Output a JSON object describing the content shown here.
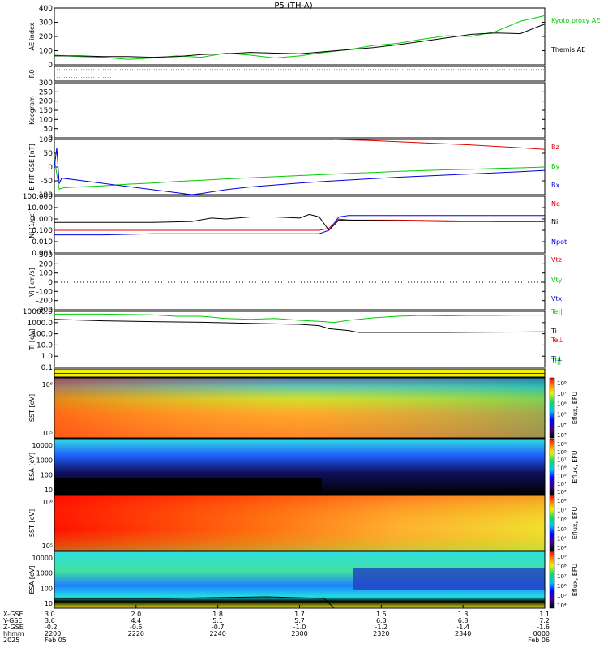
{
  "title": "P5 (TH-A)",
  "colors": {
    "black": "#000000",
    "red": "#e00000",
    "green": "#00cc00",
    "blue": "#0000dd",
    "orange": "#ff8800"
  },
  "chart_data": [
    {
      "type": "line",
      "ylabel": "AE index",
      "ylim": [
        -10,
        400
      ],
      "yticks": [
        "400",
        "300",
        "200",
        "100",
        "0"
      ],
      "series": [
        {
          "name": "Kyoto proxy AE",
          "color": "#00cc00",
          "x": [
            0,
            5,
            10,
            15,
            20,
            25,
            30,
            35,
            40,
            45,
            50,
            55,
            60,
            65,
            70,
            75,
            80,
            85,
            90,
            95,
            100
          ],
          "y": [
            60,
            50,
            45,
            30,
            40,
            55,
            45,
            75,
            60,
            40,
            55,
            80,
            100,
            130,
            145,
            175,
            200,
            195,
            230,
            305,
            345
          ]
        },
        {
          "name": "Themis AE",
          "color": "#000000",
          "x": [
            0,
            5,
            10,
            15,
            20,
            25,
            30,
            35,
            40,
            45,
            50,
            55,
            60,
            65,
            70,
            75,
            80,
            85,
            90,
            95,
            100
          ],
          "y": [
            55,
            55,
            50,
            50,
            45,
            50,
            65,
            70,
            80,
            75,
            70,
            85,
            100,
            115,
            135,
            160,
            185,
            210,
            220,
            215,
            285
          ]
        }
      ]
    },
    {
      "type": "line",
      "ylabel": "R0",
      "ylim": [
        0,
        1
      ],
      "yticks": [],
      "series": [
        {
          "name": "",
          "color": "#ff8800",
          "style": "dotted",
          "x": [
            0,
            100
          ],
          "y": [
            0.8,
            0.8
          ]
        },
        {
          "name": "",
          "color": "#ff8800",
          "style": "dotted",
          "x": [
            0,
            12
          ],
          "y": [
            0.25,
            0.25
          ]
        }
      ]
    },
    {
      "type": "line",
      "ylabel": "Keogram",
      "ylim": [
        0,
        300
      ],
      "yticks": [
        "300",
        "250",
        "200",
        "150",
        "100",
        "50",
        "0"
      ],
      "series": []
    },
    {
      "type": "line",
      "ylabel": "B FIT GSE [nT]",
      "ylim": [
        -100,
        100
      ],
      "yticks": [
        "100",
        "50",
        "0",
        "-50",
        "-100"
      ],
      "series": [
        {
          "name": "Bz",
          "color": "#e00000",
          "x": [
            57,
            65,
            70,
            75,
            80,
            85,
            90,
            95,
            100
          ],
          "y": [
            100,
            96,
            92,
            88,
            84,
            80,
            75,
            70,
            64
          ]
        },
        {
          "name": "By",
          "color": "#00cc00",
          "x": [
            0,
            1,
            2,
            5,
            10,
            15,
            20,
            25,
            30,
            35,
            40,
            45,
            50,
            55,
            60,
            65,
            70,
            75,
            80,
            85,
            90,
            95,
            100
          ],
          "y": [
            30,
            -80,
            -75,
            -72,
            -68,
            -62,
            -58,
            -52,
            -48,
            -43,
            -39,
            -35,
            -31,
            -27,
            -23,
            -20,
            -16,
            -13,
            -10,
            -8,
            -5,
            -3,
            0
          ]
        },
        {
          "name": "Bx",
          "color": "#0000dd",
          "x": [
            0,
            0.5,
            1,
            1.5,
            28,
            30,
            35,
            40,
            45,
            50,
            55,
            60,
            65,
            70,
            75,
            80,
            85,
            90,
            95,
            100
          ],
          "y": [
            0,
            70,
            -60,
            -40,
            -100,
            -96,
            -82,
            -72,
            -65,
            -58,
            -52,
            -47,
            -42,
            -37,
            -33,
            -29,
            -25,
            -21,
            -17,
            -12
          ]
        }
      ]
    },
    {
      "type": "line",
      "ylabel": "Ni [1/cc]",
      "ylog": true,
      "ylim": [
        0.001,
        100
      ],
      "yticks": [
        "100.000",
        "10.000",
        "1.000",
        "0.100",
        "0.010",
        "0.001"
      ],
      "series": [
        {
          "name": "Ne",
          "color": "#e00000",
          "x": [
            0,
            10,
            20,
            30,
            40,
            50,
            54,
            56,
            58,
            60,
            70,
            80,
            90,
            100
          ],
          "y": [
            0.1,
            0.1,
            0.1,
            0.1,
            0.1,
            0.1,
            0.1,
            0.15,
            1.0,
            0.8,
            0.8,
            0.7,
            0.6,
            0.6
          ]
        },
        {
          "name": "Ni",
          "color": "#000000",
          "x": [
            0,
            10,
            20,
            28,
            32,
            35,
            40,
            45,
            50,
            52,
            54,
            56,
            58,
            60,
            70,
            80,
            90,
            100
          ],
          "y": [
            0.5,
            0.5,
            0.5,
            0.6,
            1.2,
            1.0,
            1.5,
            1.5,
            1.2,
            2.5,
            1.5,
            0.1,
            0.8,
            0.8,
            0.7,
            0.6,
            0.6,
            0.6
          ]
        },
        {
          "name": "Npot",
          "color": "#0000dd",
          "x": [
            0,
            10,
            20,
            30,
            40,
            50,
            54,
            56,
            58,
            60,
            70,
            80,
            90,
            100
          ],
          "y": [
            0.04,
            0.04,
            0.05,
            0.05,
            0.05,
            0.05,
            0.05,
            0.1,
            1.5,
            2.0,
            2.0,
            2.0,
            2.0,
            2.0
          ]
        }
      ]
    },
    {
      "type": "line",
      "ylabel": "Vi [km/s]",
      "ylim": [
        -300,
        300
      ],
      "yticks": [
        "300",
        "200",
        "100",
        "0",
        "-100",
        "-200",
        "-300"
      ],
      "series": [
        {
          "name": "Vtz",
          "color": "#e00000",
          "x": [],
          "y": []
        },
        {
          "name": "Vty",
          "color": "#00cc00",
          "x": [],
          "y": []
        },
        {
          "name": "Vtx",
          "color": "#0000dd",
          "x": [],
          "y": []
        }
      ]
    },
    {
      "type": "line",
      "ylabel": "Ti [eV]",
      "ylog": true,
      "ylim": [
        0.05,
        15000
      ],
      "yticks": [
        "10000.0",
        "1000.0",
        "100.0",
        "10.0",
        "1.0",
        "0.1"
      ],
      "series": [
        {
          "name": "Te||",
          "color": "#00cc00",
          "x": [
            0,
            10,
            20,
            25,
            30,
            35,
            40,
            45,
            50,
            55,
            57,
            60,
            65,
            70,
            75,
            80,
            85,
            90,
            95,
            100
          ],
          "y": [
            8000,
            8000,
            7000,
            5000,
            5000,
            3000,
            2500,
            3000,
            2000,
            1500,
            1200,
            2000,
            3500,
            5000,
            6000,
            5500,
            6000,
            6000,
            6500,
            6500
          ]
        },
        {
          "name": "Ti",
          "color": "#000000",
          "x": [
            0,
            10,
            20,
            30,
            40,
            50,
            54,
            56,
            60,
            62,
            70,
            80,
            90,
            100
          ],
          "y": [
            2500,
            1800,
            1500,
            1300,
            1000,
            800,
            600,
            300,
            200,
            130,
            130,
            130,
            140,
            150
          ]
        },
        {
          "name": "Te⊥",
          "color": "#e00000",
          "x": [],
          "y": []
        },
        {
          "name": "Ti||",
          "color": "#00cc00",
          "x": [],
          "y": []
        },
        {
          "name": "Ti⊥",
          "color": "#0000dd",
          "x": [],
          "y": []
        }
      ]
    },
    {
      "type": "heatmap",
      "ylabel": "",
      "yticks": []
    },
    {
      "type": "heatmap",
      "ylabel": "SST [eV]",
      "yticks": [
        "10⁶",
        "10⁵"
      ],
      "colorbar": {
        "label": "Eflux, EFU",
        "ticks": [
          "10⁸",
          "10⁷",
          "10⁶",
          "10⁵",
          "10⁴",
          "10³"
        ]
      }
    },
    {
      "type": "heatmap",
      "ylabel": "ESA [eV]",
      "yticks": [
        "10000",
        "1000",
        "100",
        "10"
      ],
      "colorbar": {
        "label": "Eflux, EFU",
        "ticks": [
          "10⁹",
          "10⁸",
          "10⁷",
          "10⁶",
          "10⁵",
          "10⁴",
          "10³"
        ]
      }
    },
    {
      "type": "heatmap",
      "ylabel": "SST [eV]",
      "yticks": [
        "10⁶",
        "10⁵"
      ],
      "colorbar": {
        "label": "Eflux, EFU",
        "ticks": [
          "10⁸",
          "10⁷",
          "10⁶",
          "10⁵",
          "10⁴",
          "10³"
        ]
      }
    },
    {
      "type": "heatmap",
      "ylabel": "ESA [eV]",
      "yticks": [
        "10000",
        "1000",
        "100",
        "10"
      ],
      "colorbar": {
        "label": "Eflux, EFU",
        "ticks": [
          "10⁹",
          "10⁸",
          "10⁷",
          "10⁶",
          "10⁵",
          "10⁴"
        ]
      }
    }
  ],
  "xaxis": {
    "row_labels": [
      "X-GSE",
      "Y-GSE",
      "Z-GSE",
      "hhmm",
      "2025"
    ],
    "ticks": [
      {
        "vals": [
          "3.0",
          "3.6",
          "-0.2",
          "2200",
          "Feb 05"
        ]
      },
      {
        "vals": [
          "2.0",
          "4.4",
          "-0.5",
          "2220",
          ""
        ]
      },
      {
        "vals": [
          "1.8",
          "5.1",
          "-0.7",
          "2240",
          ""
        ]
      },
      {
        "vals": [
          "1.7",
          "5.7",
          "-1.0",
          "2300",
          ""
        ]
      },
      {
        "vals": [
          "1.5",
          "6.3",
          "-1.2",
          "2320",
          ""
        ]
      },
      {
        "vals": [
          "1.3",
          "6.8",
          "-1.4",
          "2340",
          ""
        ]
      },
      {
        "vals": [
          "1.1",
          "7.2",
          "-1.6",
          "0000",
          "Feb 06"
        ]
      }
    ]
  }
}
